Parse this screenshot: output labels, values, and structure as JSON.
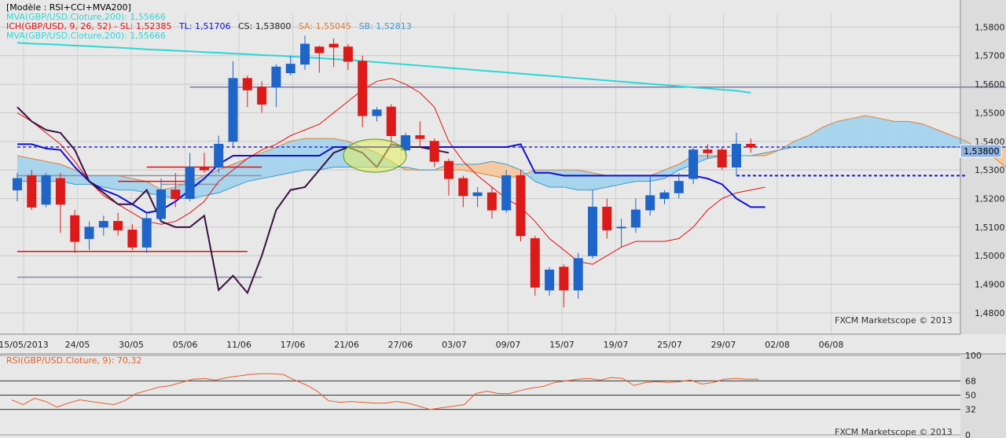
{
  "watermark": "FXCM Marketscope © 2013",
  "main": {
    "header_lines": [
      {
        "text": "[Modèle : RSI+CCI+MVA200]",
        "color": "#000000"
      },
      {
        "text": "MVA(GBP/USD.Cloture,200): 1,55666",
        "color": "#2ad7d7"
      }
    ],
    "ich_segments": [
      {
        "text": "ICH(GBP/USD, 9, 26, 52) -  SL: 1,52385",
        "color": "#e01010"
      },
      {
        "text": "TL: 1,51706",
        "color": "#1010d0"
      },
      {
        "text": "CS: 1,53800",
        "color": "#222222"
      },
      {
        "text": "SA: 1,55045",
        "color": "#e08030"
      },
      {
        "text": "SB: 1,52813",
        "color": "#3a9ad0"
      }
    ],
    "header_line4": {
      "text": "MVA(GBP/USD.Cloture,200): 1,55666",
      "color": "#2ad7d7"
    },
    "price_label": "1,53800"
  },
  "rsi": {
    "label": "RSI(GBP/USD.Cloture, 9): 70,32",
    "levels": [
      "100",
      "68",
      "50",
      "32",
      "0"
    ]
  },
  "colors": {
    "bull": "#1f64c8",
    "bear": "#dd1a1a",
    "cloud_bull": "#a8d4ee",
    "cloud_bear": "#f4c9a3",
    "tenkan": "#1010d0",
    "kijun": "#e01010",
    "chikou": "#3a1040",
    "mva": "#2ad7d7",
    "rsi": "#e0602a"
  },
  "chart_data": [
    {
      "type": "candlestick",
      "title": "GBP/USD",
      "ylim": [
        1.4775,
        1.5845
      ],
      "y_ticks": [
        "1,5800",
        "1,5700",
        "1,5600",
        "1,5500",
        "1,5400",
        "1,5300",
        "1,5200",
        "1,5100",
        "1,5000",
        "1,4900",
        "1,4800"
      ],
      "y_tick_values": [
        1.58,
        1.57,
        1.56,
        1.55,
        1.54,
        1.53,
        1.52,
        1.51,
        1.5,
        1.49,
        1.48
      ],
      "x_tick_labels": [
        "15/05/2013",
        "24/05",
        "30/05",
        "05/06",
        "11/06",
        "17/06",
        "21/06",
        "27/06",
        "03/07",
        "09/07",
        "15/07",
        "19/07",
        "25/07",
        "29/07",
        "02/08",
        "06/08"
      ],
      "candles": [
        {
          "o": 1.523,
          "h": 1.529,
          "l": 1.519,
          "c": 1.527
        },
        {
          "o": 1.528,
          "h": 1.53,
          "l": 1.516,
          "c": 1.517
        },
        {
          "o": 1.518,
          "h": 1.529,
          "l": 1.517,
          "c": 1.528
        },
        {
          "o": 1.527,
          "h": 1.529,
          "l": 1.508,
          "c": 1.518
        },
        {
          "o": 1.514,
          "h": 1.516,
          "l": 1.501,
          "c": 1.505
        },
        {
          "o": 1.506,
          "h": 1.512,
          "l": 1.502,
          "c": 1.51
        },
        {
          "o": 1.51,
          "h": 1.514,
          "l": 1.507,
          "c": 1.512
        },
        {
          "o": 1.512,
          "h": 1.515,
          "l": 1.507,
          "c": 1.509
        },
        {
          "o": 1.509,
          "h": 1.511,
          "l": 1.502,
          "c": 1.503
        },
        {
          "o": 1.503,
          "h": 1.515,
          "l": 1.501,
          "c": 1.513
        },
        {
          "o": 1.513,
          "h": 1.527,
          "l": 1.512,
          "c": 1.523
        },
        {
          "o": 1.523,
          "h": 1.529,
          "l": 1.517,
          "c": 1.52
        },
        {
          "o": 1.52,
          "h": 1.536,
          "l": 1.519,
          "c": 1.531
        },
        {
          "o": 1.531,
          "h": 1.536,
          "l": 1.529,
          "c": 1.53
        },
        {
          "o": 1.531,
          "h": 1.542,
          "l": 1.529,
          "c": 1.539
        },
        {
          "o": 1.54,
          "h": 1.568,
          "l": 1.538,
          "c": 1.562
        },
        {
          "o": 1.562,
          "h": 1.563,
          "l": 1.552,
          "c": 1.558
        },
        {
          "o": 1.559,
          "h": 1.561,
          "l": 1.55,
          "c": 1.553
        },
        {
          "o": 1.559,
          "h": 1.567,
          "l": 1.552,
          "c": 1.566
        },
        {
          "o": 1.564,
          "h": 1.57,
          "l": 1.563,
          "c": 1.567
        },
        {
          "o": 1.567,
          "h": 1.577,
          "l": 1.565,
          "c": 1.574
        },
        {
          "o": 1.573,
          "h": 1.5735,
          "l": 1.564,
          "c": 1.571
        },
        {
          "o": 1.574,
          "h": 1.576,
          "l": 1.566,
          "c": 1.573
        },
        {
          "o": 1.573,
          "h": 1.574,
          "l": 1.565,
          "c": 1.568
        },
        {
          "o": 1.568,
          "h": 1.57,
          "l": 1.545,
          "c": 1.549
        },
        {
          "o": 1.549,
          "h": 1.552,
          "l": 1.547,
          "c": 1.551
        },
        {
          "o": 1.552,
          "h": 1.553,
          "l": 1.539,
          "c": 1.542
        },
        {
          "o": 1.537,
          "h": 1.543,
          "l": 1.535,
          "c": 1.542
        },
        {
          "o": 1.542,
          "h": 1.547,
          "l": 1.538,
          "c": 1.541
        },
        {
          "o": 1.54,
          "h": 1.541,
          "l": 1.531,
          "c": 1.533
        },
        {
          "o": 1.533,
          "h": 1.534,
          "l": 1.521,
          "c": 1.527
        },
        {
          "o": 1.527,
          "h": 1.528,
          "l": 1.517,
          "c": 1.521
        },
        {
          "o": 1.521,
          "h": 1.524,
          "l": 1.517,
          "c": 1.522
        },
        {
          "o": 1.522,
          "h": 1.524,
          "l": 1.513,
          "c": 1.516
        },
        {
          "o": 1.516,
          "h": 1.53,
          "l": 1.515,
          "c": 1.528
        },
        {
          "o": 1.528,
          "h": 1.53,
          "l": 1.505,
          "c": 1.507
        },
        {
          "o": 1.506,
          "h": 1.507,
          "l": 1.486,
          "c": 1.489
        },
        {
          "o": 1.488,
          "h": 1.496,
          "l": 1.486,
          "c": 1.495
        },
        {
          "o": 1.496,
          "h": 1.497,
          "l": 1.482,
          "c": 1.488
        },
        {
          "o": 1.488,
          "h": 1.501,
          "l": 1.485,
          "c": 1.499
        },
        {
          "o": 1.5,
          "h": 1.523,
          "l": 1.499,
          "c": 1.517
        },
        {
          "o": 1.517,
          "h": 1.52,
          "l": 1.506,
          "c": 1.509
        },
        {
          "o": 1.51,
          "h": 1.513,
          "l": 1.503,
          "c": 1.51
        },
        {
          "o": 1.51,
          "h": 1.52,
          "l": 1.508,
          "c": 1.516
        },
        {
          "o": 1.516,
          "h": 1.528,
          "l": 1.514,
          "c": 1.521
        },
        {
          "o": 1.52,
          "h": 1.523,
          "l": 1.518,
          "c": 1.522
        },
        {
          "o": 1.522,
          "h": 1.529,
          "l": 1.52,
          "c": 1.526
        },
        {
          "o": 1.527,
          "h": 1.538,
          "l": 1.525,
          "c": 1.537
        },
        {
          "o": 1.537,
          "h": 1.539,
          "l": 1.534,
          "c": 1.536
        },
        {
          "o": 1.537,
          "h": 1.538,
          "l": 1.53,
          "c": 1.531
        },
        {
          "o": 1.531,
          "h": 1.543,
          "l": 1.528,
          "c": 1.539
        },
        {
          "o": 1.539,
          "h": 1.541,
          "l": 1.536,
          "c": 1.538
        }
      ],
      "tenkan_sen": [
        1.539,
        1.539,
        1.5375,
        1.537,
        1.531,
        1.526,
        1.523,
        1.521,
        1.518,
        1.515,
        1.516,
        1.519,
        1.523,
        1.527,
        1.532,
        1.535,
        1.535,
        1.535,
        1.535,
        1.535,
        1.535,
        1.535,
        1.538,
        1.538,
        1.538,
        1.538,
        1.538,
        1.538,
        1.538,
        1.538,
        1.538,
        1.538,
        1.538,
        1.538,
        1.538,
        1.539,
        1.529,
        1.529,
        1.528,
        1.528,
        1.528,
        1.528,
        1.528,
        1.528,
        1.528,
        1.528,
        1.528,
        1.528,
        1.527,
        1.525,
        1.52,
        1.517,
        1.517
      ],
      "kijun_sen": [
        1.55,
        1.547,
        1.543,
        1.539,
        1.533,
        1.526,
        1.521,
        1.518,
        1.515,
        1.512,
        1.511,
        1.512,
        1.515,
        1.519,
        1.526,
        1.53,
        1.534,
        1.537,
        1.539,
        1.542,
        1.544,
        1.546,
        1.55,
        1.554,
        1.558,
        1.561,
        1.562,
        1.56,
        1.557,
        1.552,
        1.54,
        1.533,
        1.528,
        1.524,
        1.52,
        1.517,
        1.512,
        1.506,
        1.502,
        1.498,
        1.497,
        1.5,
        1.503,
        1.505,
        1.505,
        1.505,
        1.506,
        1.51,
        1.516,
        1.52,
        1.522,
        1.523,
        1.524
      ],
      "senkou_a": [
        1.535,
        1.534,
        1.533,
        1.532,
        1.53,
        1.528,
        1.528,
        1.528,
        1.527,
        1.526,
        1.523,
        1.524,
        1.526,
        1.528,
        1.53,
        1.532,
        1.534,
        1.536,
        1.538,
        1.54,
        1.541,
        1.541,
        1.541,
        1.54,
        1.538,
        1.536,
        1.533,
        1.53,
        1.53,
        1.53,
        1.53,
        1.53,
        1.529,
        1.528,
        1.527,
        1.528,
        1.53,
        1.53,
        1.53,
        1.53,
        1.529,
        1.528,
        1.528,
        1.528,
        1.528,
        1.53,
        1.532,
        1.535,
        1.535,
        1.535,
        1.535,
        1.535,
        1.535,
        1.537,
        1.54,
        1.542,
        1.545,
        1.547,
        1.548,
        1.549,
        1.548,
        1.547,
        1.547,
        1.546,
        1.544,
        1.542,
        1.54,
        1.537,
        1.534,
        1.53,
        1.526,
        1.523,
        1.521,
        1.518
      ],
      "senkou_b": [
        1.526,
        1.526,
        1.526,
        1.526,
        1.525,
        1.525,
        1.524,
        1.523,
        1.523,
        1.522,
        1.521,
        1.52,
        1.52,
        1.521,
        1.522,
        1.524,
        1.526,
        1.527,
        1.528,
        1.529,
        1.53,
        1.53,
        1.531,
        1.531,
        1.531,
        1.531,
        1.531,
        1.531,
        1.53,
        1.53,
        1.532,
        1.532,
        1.532,
        1.533,
        1.532,
        1.53,
        1.526,
        1.524,
        1.524,
        1.523,
        1.523,
        1.524,
        1.525,
        1.526,
        1.526,
        1.527,
        1.53,
        1.532,
        1.534,
        1.535,
        1.535,
        1.535,
        1.536,
        1.537,
        1.538,
        1.538,
        1.538,
        1.538,
        1.538,
        1.538,
        1.538,
        1.538,
        1.538,
        1.538,
        1.538,
        1.538,
        1.538,
        1.538,
        1.538,
        1.538,
        1.53,
        1.53,
        1.53,
        1.528
      ],
      "chikou_span": [
        1.552,
        1.547,
        1.544,
        1.543,
        1.537,
        1.526,
        1.522,
        1.518,
        1.518,
        1.523,
        1.512,
        1.51,
        1.51,
        1.514,
        1.488,
        1.493,
        1.487,
        1.5,
        1.516,
        1.523,
        1.524,
        1.53,
        1.536,
        1.538,
        1.536,
        1.531,
        1.539,
        1.538,
        1.538,
        1.537,
        1.536
      ],
      "mva_200": [
        1.5745,
        1.5742,
        1.574,
        1.5738,
        1.5735,
        1.5733,
        1.573,
        1.5728,
        1.5725,
        1.5722,
        1.572,
        1.5717,
        1.5715,
        1.5712,
        1.571,
        1.5707,
        1.5705,
        1.5702,
        1.57,
        1.5697,
        1.5694,
        1.5691,
        1.5688,
        1.5685,
        1.5681,
        1.5677,
        1.5673,
        1.5669,
        1.5665,
        1.5661,
        1.5657,
        1.5653,
        1.5649,
        1.5645,
        1.5641,
        1.5637,
        1.5633,
        1.5629,
        1.5625,
        1.5621,
        1.5617,
        1.5613,
        1.5609,
        1.5605,
        1.5601,
        1.5597,
        1.5593,
        1.5589,
        1.5585,
        1.5581,
        1.5577,
        1.557
      ],
      "horizontal_levels": [
        {
          "value": 1.559,
          "color": "#7878a8",
          "from": 12,
          "to": 70
        },
        {
          "value": 1.538,
          "color": "#5a5ad0",
          "dashed": true,
          "from": 0,
          "to": 70
        },
        {
          "value": 1.528,
          "color": "#1a1ad0",
          "dashed": true,
          "from": 50,
          "to": 66
        },
        {
          "value": 1.531,
          "color": "#e01010",
          "from": 9,
          "to": 17
        },
        {
          "value": 1.526,
          "color": "#e01010",
          "from": 7,
          "to": 12
        },
        {
          "value": 1.5015,
          "color": "#e01010",
          "from": 0,
          "to": 16
        },
        {
          "value": 1.4925,
          "color": "#8888b0",
          "from": 0,
          "to": 17
        },
        {
          "value": 1.528,
          "color": "#9090a0",
          "from": 0,
          "to": 17
        },
        {
          "value": 1.525,
          "color": "#9090a0",
          "from": 10,
          "to": 14
        }
      ]
    },
    {
      "type": "line",
      "title": "RSI(GBP/USD.Cloture, 9)",
      "ylim": [
        0,
        100
      ],
      "levels": [
        100,
        68,
        50,
        32,
        0
      ],
      "values": [
        44,
        38,
        46,
        42,
        35,
        40,
        44,
        42,
        40,
        38,
        43,
        52,
        56,
        60,
        62,
        66,
        70,
        71,
        69,
        72,
        74,
        76,
        77,
        77,
        76,
        69,
        63,
        55,
        43,
        41,
        42,
        41,
        40,
        40,
        42,
        40,
        36,
        32,
        34,
        36,
        38,
        52,
        55,
        52,
        52,
        56,
        59,
        61,
        66,
        68,
        70,
        71,
        69,
        72,
        71,
        62,
        66,
        67,
        66,
        67,
        69,
        64,
        66,
        70,
        71,
        70,
        70
      ]
    }
  ]
}
